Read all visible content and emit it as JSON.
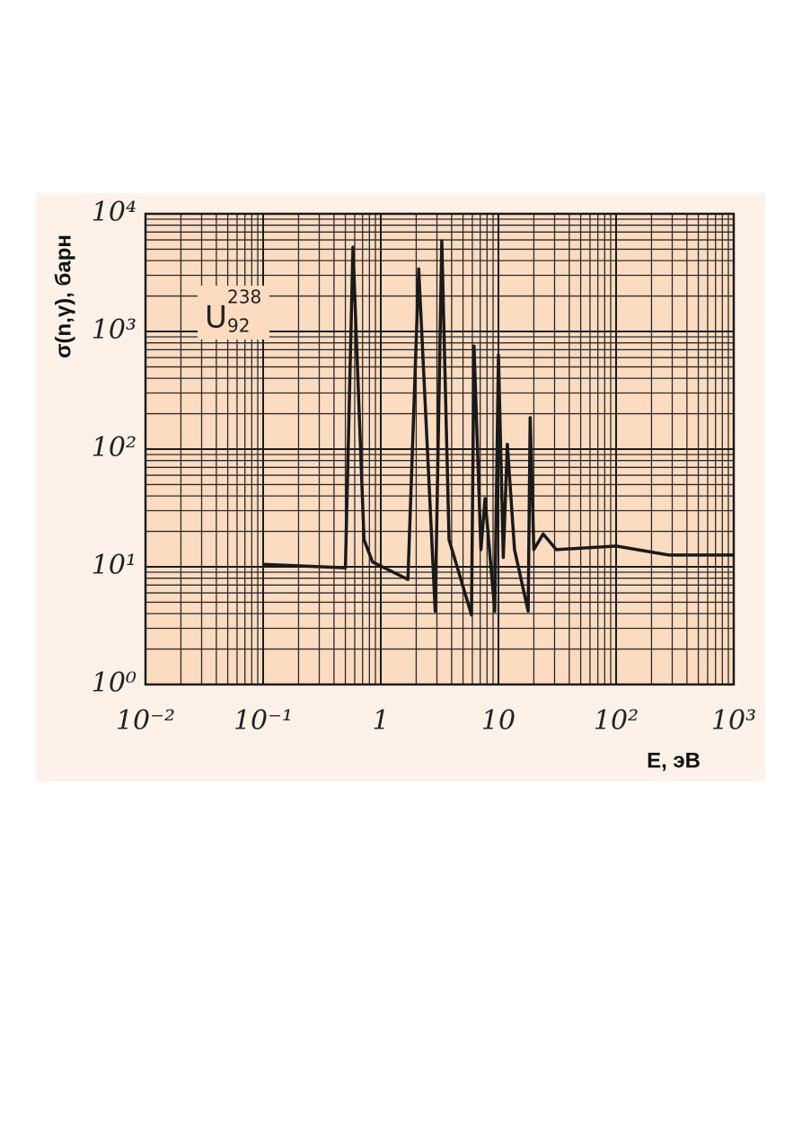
{
  "chart_data": {
    "type": "line",
    "ylabel": "σ(n,γ), барн",
    "xlabel": "E, эВ",
    "annotation": {
      "symbol": "U",
      "mass": "238",
      "atomic": "92"
    },
    "x": [
      0.1,
      0.5,
      0.58,
      0.72,
      0.85,
      1.7,
      2.1,
      2.9,
      3.3,
      3.8,
      5.9,
      6.2,
      7.1,
      7.7,
      9.3,
      10,
      11,
      11.9,
      13.7,
      17.9,
      18.6,
      20,
      24,
      31,
      100,
      280,
      1000
    ],
    "series": [
      {
        "name": "U-238",
        "color": "#1a1a1a",
        "values": [
          10.5,
          9.8,
          5200,
          17,
          11,
          7.8,
          3400,
          4.2,
          5900,
          17,
          3.9,
          750,
          14,
          38,
          4.2,
          630,
          12,
          110,
          14,
          4.2,
          185,
          14,
          19,
          14,
          15,
          12.6,
          12.6
        ]
      }
    ],
    "xlog": true,
    "ylog": true,
    "xlim": [
      0.01,
      1000
    ],
    "ylim": [
      1,
      10000
    ],
    "xticks": [
      {
        "value": 0.01,
        "label": "10⁻²"
      },
      {
        "value": 0.1,
        "label": "10⁻¹"
      },
      1,
      10,
      {
        "value": 100,
        "label": "10²"
      },
      {
        "value": 1000,
        "label": "10³"
      }
    ],
    "yticks": [
      {
        "value": 1,
        "label": "10⁰"
      },
      {
        "value": 10,
        "label": "10¹"
      },
      {
        "value": 100,
        "label": "10²"
      },
      {
        "value": 1000,
        "label": "10³"
      },
      {
        "value": 10000,
        "label": "10⁴"
      }
    ],
    "grid": true,
    "minor_grid": true,
    "background": "#fcdcc0"
  }
}
